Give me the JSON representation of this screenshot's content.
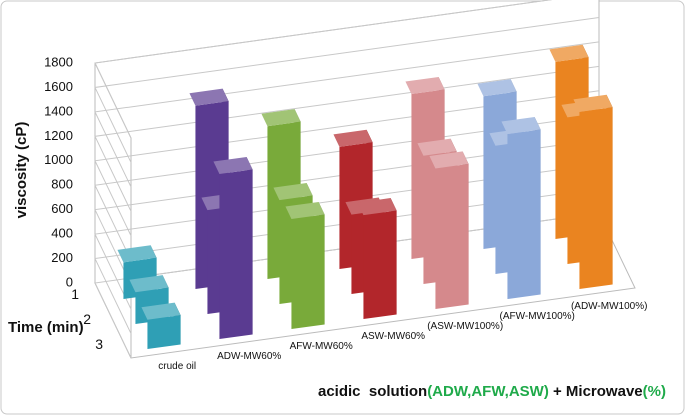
{
  "chart_data": {
    "type": "bar3d",
    "ylabel": "viscosity (cP)",
    "depth_label": "Time (min)",
    "xlabel_parts": [
      {
        "text": "acidic  solution",
        "color": "#111111"
      },
      {
        "text": "(ADW,AFW,ASW)",
        "color": "#1faa4a"
      },
      {
        "text": " + Microwave",
        "color": "#111111"
      },
      {
        "text": "(%)",
        "color": "#1faa4a"
      }
    ],
    "categories": [
      "crude oil",
      "ADW-MW60%",
      "AFW-MW60%",
      "ASW-MW60%",
      "(ASW-MW100%)",
      "(AFW-MW100%)",
      "(ADW-MW100%)"
    ],
    "colors": [
      "#2f9fb5",
      "#5a3b91",
      "#79aa3a",
      "#b2262b",
      "#d5898c",
      "#8ba8d9",
      "#ea8420"
    ],
    "series": [
      {
        "name": "1",
        "values": [
          300,
          1500,
          1250,
          1000,
          1350,
          1250,
          1450
        ]
      },
      {
        "name": "2",
        "values": [
          260,
          850,
          850,
          650,
          1050,
          1050,
          1200
        ]
      },
      {
        "name": "3",
        "values": [
          240,
          1350,
          900,
          850,
          1150,
          1350,
          1450
        ]
      }
    ],
    "ylim": [
      0,
      1800
    ],
    "yticks": [
      0,
      200,
      400,
      600,
      800,
      1000,
      1200,
      1400,
      1600,
      1800
    ],
    "grid": true
  }
}
